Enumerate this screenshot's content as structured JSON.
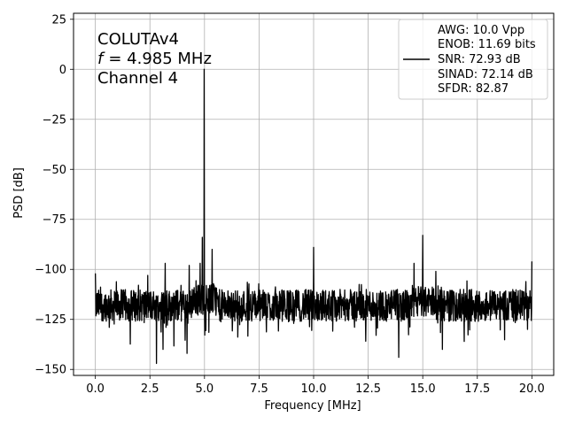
{
  "chart_data": {
    "type": "line",
    "title": "",
    "xlabel": "Frequency [MHz]",
    "ylabel": "PSD [dB]",
    "xlim": [
      -1.0,
      21.0
    ],
    "ylim": [
      -153,
      28
    ],
    "xticks": [
      0.0,
      2.5,
      5.0,
      7.5,
      10.0,
      12.5,
      15.0,
      17.5,
      20.0
    ],
    "xtick_labels": [
      "0.0",
      "2.5",
      "5.0",
      "7.5",
      "10.0",
      "12.5",
      "15.0",
      "17.5",
      "20.0"
    ],
    "yticks": [
      25,
      0,
      -25,
      -50,
      -75,
      -100,
      -125,
      -150
    ],
    "ytick_labels": [
      "25",
      "0",
      "−25",
      "−50",
      "−75",
      "−100",
      "−125",
      "−150"
    ],
    "grid": true,
    "line_color": "#000000",
    "annotations": [
      "COLUTAv4",
      "= 4.985 MHz",
      "Channel 4"
    ],
    "annotation_italic_prefix": "f",
    "legend": {
      "placement": "upper right",
      "entries": [
        "AWG: 10.0 Vpp",
        "ENOB: 11.69 bits",
        "SNR: 72.93 dB",
        "SINAD: 72.14 dB",
        "SFDR: 82.87"
      ]
    },
    "series": [
      {
        "noise_floor_db": -118,
        "noise_range_db": [
          -147,
          -101
        ],
        "fundamental": {
          "x": 4.985,
          "y": 0
        },
        "peaks": [
          {
            "x": 4.9,
            "y": -84
          },
          {
            "x": 4.8,
            "y": -97
          },
          {
            "x": 5.35,
            "y": -90
          },
          {
            "x": 3.2,
            "y": -97
          },
          {
            "x": 4.3,
            "y": -98
          },
          {
            "x": 10.0,
            "y": -89
          },
          {
            "x": 14.6,
            "y": -97
          },
          {
            "x": 15.0,
            "y": -83
          },
          {
            "x": 15.6,
            "y": -101
          },
          {
            "x": 20.0,
            "y": -96
          },
          {
            "x": 0.0,
            "y": -102
          }
        ],
        "dips": [
          {
            "x": 2.8,
            "y": -147
          },
          {
            "x": 4.2,
            "y": -142
          },
          {
            "x": 3.1,
            "y": -140
          },
          {
            "x": 13.9,
            "y": -144
          },
          {
            "x": 15.9,
            "y": -140
          },
          {
            "x": 16.9,
            "y": -136
          },
          {
            "x": 19.8,
            "y": -130
          }
        ]
      }
    ]
  }
}
